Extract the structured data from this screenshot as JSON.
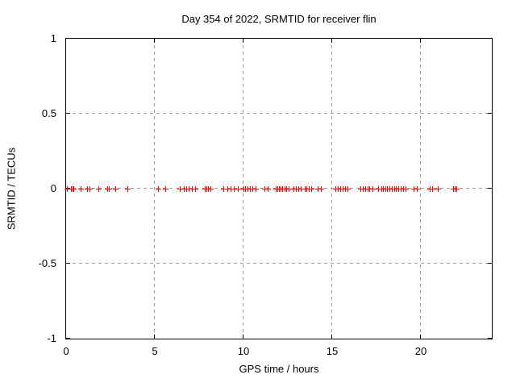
{
  "chart_data": {
    "type": "scatter",
    "title": "Day 354 of 2022, SRMTID for receiver flin",
    "xlabel": "GPS time / hours",
    "ylabel": "SRMTID / TECUs",
    "xlim": [
      0,
      24
    ],
    "ylim": [
      -1,
      1
    ],
    "xticks": [
      0,
      5,
      10,
      15,
      20
    ],
    "yticks": [
      1,
      0.5,
      0,
      -0.5,
      -1
    ],
    "grid": true,
    "grid_style": "dashed",
    "grid_color": "#9f9f9f",
    "border_color": "#000000",
    "background_color": "#ffffff",
    "legend": "none",
    "series": [
      {
        "name": "SRMTID",
        "marker": "plus",
        "marker_color": "#ff0000",
        "y": 0,
        "x": [
          0.06,
          0.28,
          0.35,
          0.42,
          0.8,
          1.2,
          1.32,
          1.8,
          2.3,
          2.42,
          2.77,
          3.45,
          5.2,
          5.6,
          6.4,
          6.65,
          6.78,
          6.9,
          7.1,
          7.28,
          7.8,
          7.9,
          8.02,
          8.12,
          8.85,
          9.1,
          9.25,
          9.45,
          9.7,
          10.0,
          10.1,
          10.22,
          10.35,
          10.5,
          10.7,
          11.2,
          11.38,
          11.8,
          11.9,
          12.0,
          12.1,
          12.2,
          12.3,
          12.42,
          12.55,
          12.8,
          12.95,
          13.1,
          13.22,
          13.45,
          13.55,
          13.68,
          13.8,
          14.2,
          14.35,
          15.2,
          15.32,
          15.45,
          15.6,
          15.72,
          15.85,
          16.6,
          16.72,
          16.85,
          16.98,
          17.1,
          17.25,
          17.6,
          17.75,
          17.88,
          18.0,
          18.1,
          18.22,
          18.35,
          18.48,
          18.6,
          18.72,
          18.85,
          19.0,
          19.15,
          19.6,
          19.75,
          20.5,
          20.65,
          20.95,
          21.8,
          21.9,
          22.0
        ]
      }
    ]
  }
}
